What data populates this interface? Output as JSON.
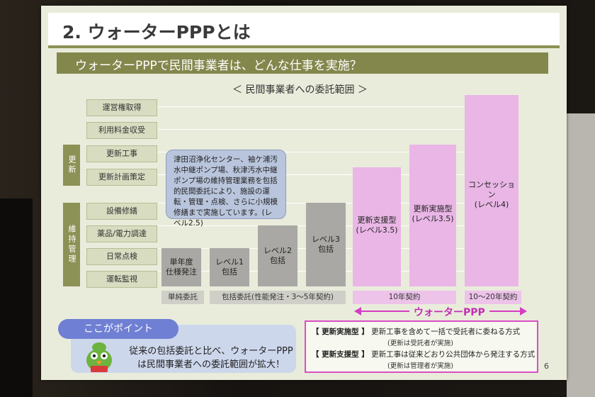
{
  "title": "2. ウォーターPPPとは",
  "subtitle": "ウォーターPPPで民間事業者は、どんな仕事を実施？",
  "section_title": "＜ 民間事業者への委託範囲 ＞",
  "group_labels": {
    "renewal": "更新",
    "maintenance": "維持管理"
  },
  "rows": [
    "運営権取得",
    "利用料金収受",
    "更新工事",
    "更新計画策定",
    "設備修繕",
    "薬品/電力調達",
    "日常点検",
    "運転監視"
  ],
  "bars": [
    {
      "label": "単年度\n仕様発注",
      "color": "gray"
    },
    {
      "label": "レベル1\n包括",
      "color": "gray"
    },
    {
      "label": "レベル2\n包括",
      "color": "gray"
    },
    {
      "label": "レベル3\n包括",
      "color": "gray"
    },
    {
      "label": "更新支援型\n(レベル3.5)",
      "color": "pink"
    },
    {
      "label": "更新実施型\n(レベル3.5)",
      "color": "pink"
    },
    {
      "label": "コンセッション\n(レベル4)",
      "color": "pink"
    }
  ],
  "callout": "津田沼浄化センター、袖ケ浦汚水中継ポンプ場、秋津汚水中継ポンプ場の維持管理業務を包括的民間委託により、施設の運転・管理・点検、さらに小規模修繕まで実施しています。(レベル2.5)",
  "bottom_labels": {
    "simple": "単純委託",
    "comprehensive": "包括委託(性能発注・3～5年契約)",
    "ten_year": "10年契約",
    "long_term": "10～20年契約"
  },
  "arrow_label": "ウォーターPPP",
  "point": {
    "badge": "ここがポイント",
    "line1": "従来の包括委託と比べ、ウォーターPPP",
    "line2": "は民間事業者への委託範囲が拡大！"
  },
  "definitions": [
    {
      "key": "【 更新実施型 】",
      "text": "更新工事を含めて一括で受託者に委ねる方式",
      "sub": "(更新は受託者が実施)"
    },
    {
      "key": "【 更新支援型 】",
      "text": "更新工事は従来どおり公共団体から発注する方式",
      "sub": "(更新は管理者が実施)"
    }
  ],
  "page_number": "6",
  "colors": {
    "olive": "#84874c",
    "pink": "#e9b6e6",
    "magenta": "#d63cc3",
    "gray": "#a9a8a4"
  }
}
